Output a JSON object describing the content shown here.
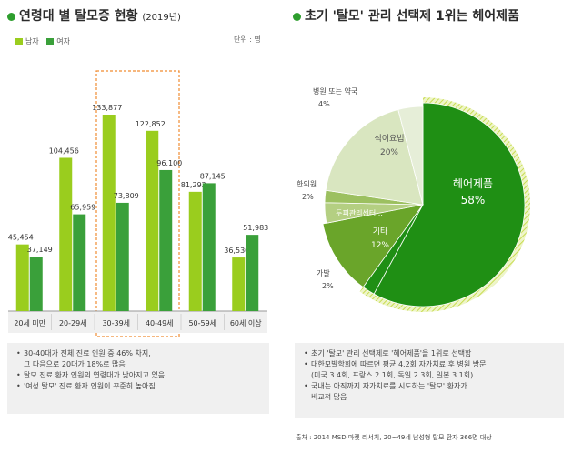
{
  "left": {
    "title": "연령대 별 탈모증 현황",
    "title_year": "(2019년)",
    "unit": "단위 : 명",
    "notes": [
      "30-40대가 전체 진료 인원 중 46% 차지,",
      "그 다음으로 20대가 18%로 많음",
      "탈모 진료 환자 인원의 연령대가 낮아지고 있음",
      "'여성 탈모' 진료 환자 인원이 꾸준히 높아짐"
    ]
  },
  "right": {
    "title": "초기 '탈모' 관리 선택제 1위는 헤어제품",
    "notes": [
      "초기 '탈모' 관리 선택제로 '헤어제품'을 1위로 선택함",
      "대한모발학회에 따르면 평균 4.2회 자가치료 후 병원 방문",
      "(미국 3.4회, 프랑스 2.1회, 독일 2.3회, 일본 3.1회)",
      "국내는 아직까지 자가치료를 시도하는 '탈모' 환자가",
      "비교적 많음"
    ],
    "source": "출처 : 2014 MSD 마켓 리서치, 20~49세 남성형 탈모 환자 366명 대상"
  },
  "colors": {
    "male": "#9acd1e",
    "female": "#3aa03a",
    "highlight_box": "#f08c32",
    "hair_product": "#1f8f14",
    "other": "#6aa52a",
    "oriental": "#9cc060",
    "scalp_center": "#b4cf82",
    "diet": "#d9e6c0",
    "hospital": "#e6eed8",
    "hatch": "#c8dc50"
  },
  "chart_data": [
    {
      "type": "bar",
      "categories": [
        "20세 미만",
        "20-29세",
        "30-39세",
        "40-49세",
        "50-59세",
        "60세 이상"
      ],
      "series": [
        {
          "name": "남자",
          "values": [
            45454,
            104456,
            133877,
            122852,
            81292,
            36530
          ]
        },
        {
          "name": "여자",
          "values": [
            37149,
            65959,
            73809,
            96100,
            87145,
            51983
          ]
        }
      ],
      "ylim": [
        0,
        150000
      ],
      "value_labels": [
        [
          "45,454",
          "104,456",
          "133,877",
          "122,852",
          "81,292",
          "36,530"
        ],
        [
          "37,149",
          "65,959",
          "73,809",
          "96,100",
          "87,145",
          "51,983"
        ]
      ],
      "highlighted_categories": [
        "30-39세",
        "40-49세"
      ],
      "legend": "top-left"
    },
    {
      "type": "pie",
      "labels": [
        "헤어제품",
        "가발",
        "기타",
        "두피관리센터...",
        "한의원",
        "식이요법",
        "병원 또는 약국"
      ],
      "values": [
        58,
        2,
        12,
        null,
        2,
        20,
        4
      ],
      "value_labels": [
        "58%",
        "2%",
        "12%",
        "",
        "2%",
        "20%",
        "4%"
      ]
    }
  ]
}
